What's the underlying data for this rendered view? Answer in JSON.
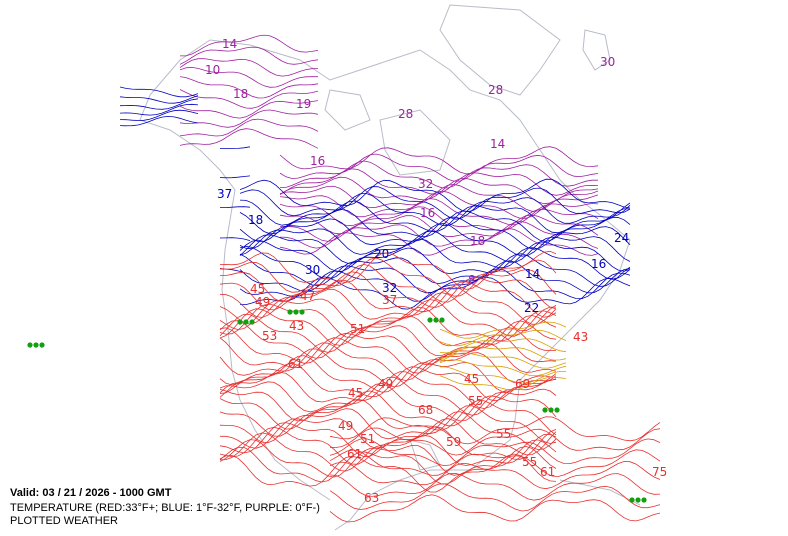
{
  "header": {
    "valid": "Valid: 03 / 21 / 2026  -  1000 GMT",
    "legend": "TEMPERATURE (RED:33°F+; BLUE: 1°F-32°F, PURPLE: 0°F-)",
    "subtitle": "PLOTTED WEATHER"
  },
  "contour_labels": [
    "14",
    "10",
    "18",
    "19",
    "28",
    "28",
    "14",
    "16",
    "32",
    "16",
    "18",
    "8",
    "30",
    "37",
    "18",
    "20",
    "30",
    "32",
    "14",
    "22",
    "24",
    "16",
    "45",
    "49",
    "47",
    "37",
    "51",
    "43",
    "45",
    "49",
    "61",
    "45",
    "55",
    "68",
    "49",
    "51",
    "55",
    "59",
    "55",
    "61",
    "75",
    "43",
    "69",
    "63",
    "61",
    "53"
  ]
}
